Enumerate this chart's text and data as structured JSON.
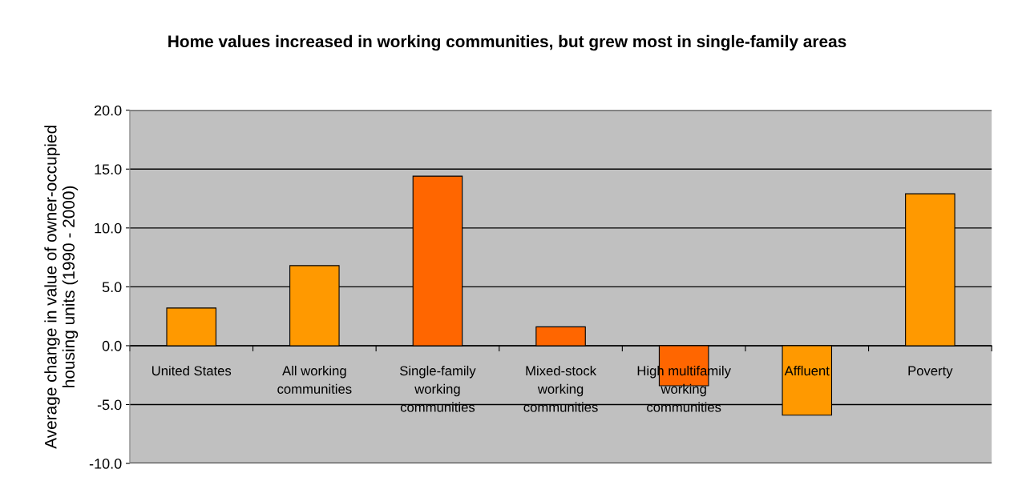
{
  "chart_data": {
    "type": "bar",
    "title": "Home values increased in working communities, but grew most in single-family areas",
    "ylabel": "Average change in value of owner-occupied\nhousing units (1990 - 2000)",
    "categories": [
      "United States",
      "All working\ncommunities",
      "Single-family\nworking\ncommunities",
      "Mixed-stock\nworking\ncommunities",
      "High multifamily\nworking\ncommunities",
      "Affluent",
      "Poverty"
    ],
    "values": [
      3.2,
      6.8,
      14.4,
      1.6,
      -3.4,
      -5.9,
      12.9
    ],
    "colors": [
      "#ff9900",
      "#ff9900",
      "#ff6600",
      "#ff6600",
      "#ff6600",
      "#ff9900",
      "#ff9900"
    ],
    "ylim": [
      -10,
      20
    ],
    "yticks": [
      {
        "value": -10,
        "label": "-10.0"
      },
      {
        "value": -5,
        "label": "-5.0"
      },
      {
        "value": 0,
        "label": "0.0"
      },
      {
        "value": 5,
        "label": "5.0"
      },
      {
        "value": 10,
        "label": "10.0"
      },
      {
        "value": 15,
        "label": "15.0"
      },
      {
        "value": 20,
        "label": "20.0"
      }
    ],
    "grid": "y",
    "legend": false
  }
}
